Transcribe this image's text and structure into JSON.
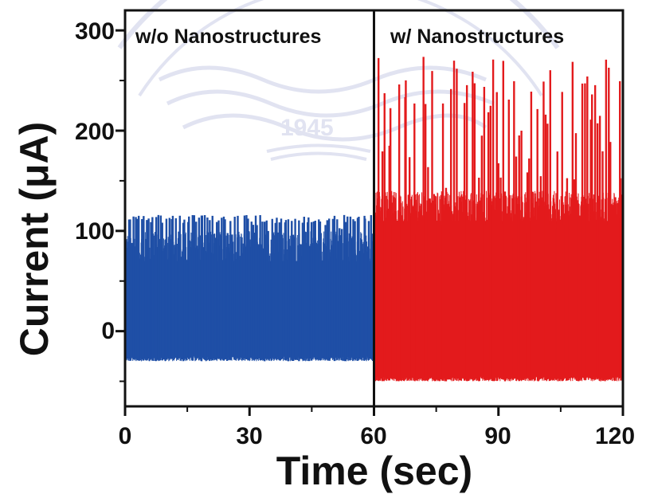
{
  "chart_data": {
    "type": "line",
    "xlabel": "Time (sec)",
    "ylabel": "Current (μA)",
    "xlim": [
      0,
      120
    ],
    "ylim": [
      -75,
      320
    ],
    "x_ticks": [
      0,
      30,
      60,
      90,
      120
    ],
    "y_ticks": [
      0,
      100,
      200,
      300
    ],
    "grid": false,
    "panels": [
      {
        "label": "w/o Nanostructures",
        "x_range": [
          0,
          60
        ]
      },
      {
        "label": "w/ Nanostructures",
        "x_range": [
          60,
          120
        ]
      }
    ],
    "divider_x": 60,
    "series": [
      {
        "label": "w/o Nanostructures",
        "color": "#1f4fa6",
        "x_range": [
          0,
          60
        ],
        "baseline_low": -30,
        "typical_low": -25,
        "spike_high": 116,
        "dense_fill_top": 70,
        "spike_count": 110
      },
      {
        "label": "w/ Nanostructures",
        "color": "#e31a1c",
        "x_range": [
          60,
          120
        ],
        "baseline_low": -50,
        "typical_low": -45,
        "spike_high": 276,
        "dense_fill_top": 110,
        "spike_count": 95
      }
    ]
  },
  "watermark": {
    "text": "1945"
  }
}
